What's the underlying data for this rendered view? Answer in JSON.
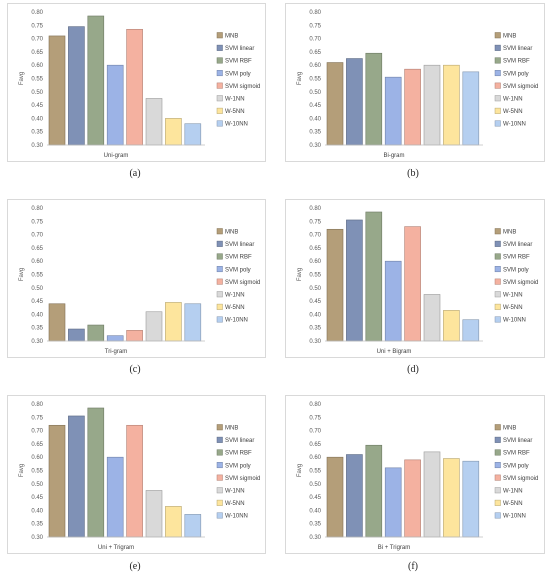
{
  "palette": {
    "MNB": "#b49e79",
    "SVM linear": "#7f91b6",
    "SVM RBF": "#97a88a",
    "SVM poly": "#9cb3e6",
    "SVM sigmoid": "#f4b1a0",
    "W-1NN": "#d9d9d9",
    "W-5NN": "#fde59d",
    "W-10NN": "#b5cff0"
  },
  "panel_letters": [
    "(a)",
    "(b)",
    "(c)",
    "(d)",
    "(e)",
    "(f)"
  ],
  "chart_data": [
    {
      "type": "bar",
      "title": "",
      "xlabel": "Uni-gram",
      "ylabel": "Favg",
      "ylim": [
        0.3,
        0.8
      ],
      "yticks": [
        "0.30",
        "0.35",
        "0.40",
        "0.45",
        "0.50",
        "0.55",
        "0.60",
        "0.65",
        "0.70",
        "0.75",
        "0.80"
      ],
      "grid": false,
      "legend_position": "right",
      "series": [
        {
          "name": "MNB",
          "value": 0.71
        },
        {
          "name": "SVM linear",
          "value": 0.745
        },
        {
          "name": "SVM RBF",
          "value": 0.785
        },
        {
          "name": "SVM poly",
          "value": 0.6
        },
        {
          "name": "SVM sigmoid",
          "value": 0.735
        },
        {
          "name": "W-1NN",
          "value": 0.475
        },
        {
          "name": "W-5NN",
          "value": 0.4
        },
        {
          "name": "W-10NN",
          "value": 0.38
        }
      ]
    },
    {
      "type": "bar",
      "title": "",
      "xlabel": "Bi-gram",
      "ylabel": "Favg",
      "ylim": [
        0.3,
        0.8
      ],
      "yticks": [
        "0.30",
        "0.35",
        "0.40",
        "0.45",
        "0.50",
        "0.55",
        "0.60",
        "0.65",
        "0.70",
        "0.75",
        "0.80"
      ],
      "grid": false,
      "legend_position": "right",
      "series": [
        {
          "name": "MNB",
          "value": 0.61
        },
        {
          "name": "SVM linear",
          "value": 0.625
        },
        {
          "name": "SVM RBF",
          "value": 0.645
        },
        {
          "name": "SVM poly",
          "value": 0.555
        },
        {
          "name": "SVM sigmoid",
          "value": 0.585
        },
        {
          "name": "W-1NN",
          "value": 0.6
        },
        {
          "name": "W-5NN",
          "value": 0.6
        },
        {
          "name": "W-10NN",
          "value": 0.575
        }
      ]
    },
    {
      "type": "bar",
      "title": "",
      "xlabel": "Tri-gram",
      "ylabel": "Favg",
      "ylim": [
        0.3,
        0.8
      ],
      "yticks": [
        "0.30",
        "0.35",
        "0.40",
        "0.45",
        "0.50",
        "0.55",
        "0.60",
        "0.65",
        "0.70",
        "0.75",
        "0.80"
      ],
      "grid": false,
      "legend_position": "right",
      "series": [
        {
          "name": "MNB",
          "value": 0.44
        },
        {
          "name": "SVM linear",
          "value": 0.345
        },
        {
          "name": "SVM RBF",
          "value": 0.36
        },
        {
          "name": "SVM poly",
          "value": 0.32
        },
        {
          "name": "SVM sigmoid",
          "value": 0.34
        },
        {
          "name": "W-1NN",
          "value": 0.41
        },
        {
          "name": "W-5NN",
          "value": 0.445
        },
        {
          "name": "W-10NN",
          "value": 0.44
        }
      ]
    },
    {
      "type": "bar",
      "title": "",
      "xlabel": "Uni + Bigram",
      "ylabel": "Favg",
      "ylim": [
        0.3,
        0.8
      ],
      "yticks": [
        "0.30",
        "0.35",
        "0.40",
        "0.45",
        "0.50",
        "0.55",
        "0.60",
        "0.65",
        "0.70",
        "0.75",
        "0.80"
      ],
      "grid": false,
      "legend_position": "right",
      "series": [
        {
          "name": "MNB",
          "value": 0.72
        },
        {
          "name": "SVM linear",
          "value": 0.755
        },
        {
          "name": "SVM RBF",
          "value": 0.785
        },
        {
          "name": "SVM poly",
          "value": 0.6
        },
        {
          "name": "SVM sigmoid",
          "value": 0.73
        },
        {
          "name": "W-1NN",
          "value": 0.475
        },
        {
          "name": "W-5NN",
          "value": 0.415
        },
        {
          "name": "W-10NN",
          "value": 0.38
        }
      ]
    },
    {
      "type": "bar",
      "title": "",
      "xlabel": "Uni + Trigram",
      "ylabel": "Favg",
      "ylim": [
        0.3,
        0.8
      ],
      "yticks": [
        "0.30",
        "0.35",
        "0.40",
        "0.45",
        "0.50",
        "0.55",
        "0.60",
        "0.65",
        "0.70",
        "0.75",
        "0.80"
      ],
      "grid": false,
      "legend_position": "right",
      "series": [
        {
          "name": "MNB",
          "value": 0.72
        },
        {
          "name": "SVM linear",
          "value": 0.755
        },
        {
          "name": "SVM RBF",
          "value": 0.785
        },
        {
          "name": "SVM poly",
          "value": 0.6
        },
        {
          "name": "SVM sigmoid",
          "value": 0.72
        },
        {
          "name": "W-1NN",
          "value": 0.475
        },
        {
          "name": "W-5NN",
          "value": 0.415
        },
        {
          "name": "W-10NN",
          "value": 0.385
        }
      ]
    },
    {
      "type": "bar",
      "title": "",
      "xlabel": "Bi + Trigram",
      "ylabel": "Favg",
      "ylim": [
        0.3,
        0.8
      ],
      "yticks": [
        "0.30",
        "0.35",
        "0.40",
        "0.45",
        "0.50",
        "0.55",
        "0.60",
        "0.65",
        "0.70",
        "0.75",
        "0.80"
      ],
      "grid": false,
      "legend_position": "right",
      "series": [
        {
          "name": "MNB",
          "value": 0.6
        },
        {
          "name": "SVM linear",
          "value": 0.61
        },
        {
          "name": "SVM RBF",
          "value": 0.645
        },
        {
          "name": "SVM poly",
          "value": 0.56
        },
        {
          "name": "SVM sigmoid",
          "value": 0.59
        },
        {
          "name": "W-1NN",
          "value": 0.62
        },
        {
          "name": "W-5NN",
          "value": 0.595
        },
        {
          "name": "W-10NN",
          "value": 0.585
        }
      ]
    }
  ]
}
